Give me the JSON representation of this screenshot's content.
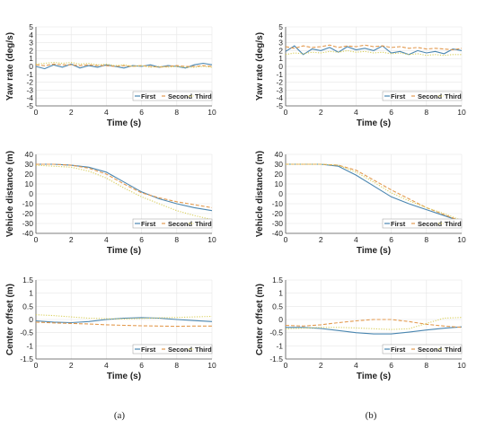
{
  "captions": [
    "(a)",
    "(b)"
  ],
  "colors": {
    "first": "#4a86b0",
    "second": "#e39a4f",
    "third": "#d9cf5c"
  },
  "chart_data": [
    {
      "type": "line",
      "panel": "a",
      "row": 0,
      "xlabel": "Time (s)",
      "ylabel": "Yaw rate (deg/s)",
      "xlim": [
        0,
        10
      ],
      "ylim": [
        -5,
        5
      ],
      "xticks": [
        0,
        2,
        4,
        6,
        8,
        10
      ],
      "yticks": [
        -5,
        -4,
        -3,
        -2,
        -1,
        0,
        1,
        2,
        3,
        4,
        5
      ],
      "grid": true,
      "legend": "bottom-right",
      "x": [
        0,
        0.5,
        1,
        1.5,
        2,
        2.5,
        3,
        3.5,
        4,
        4.5,
        5,
        5.5,
        6,
        6.5,
        7,
        7.5,
        8,
        8.5,
        9,
        9.5,
        10
      ],
      "series": [
        {
          "name": "First",
          "style": "solid",
          "color": "#4a86b0",
          "values": [
            0.0,
            -0.3,
            0.2,
            -0.1,
            0.3,
            -0.2,
            0.1,
            -0.1,
            0.2,
            0.0,
            -0.2,
            0.1,
            0.0,
            0.2,
            -0.1,
            0.1,
            0.0,
            -0.2,
            0.2,
            0.4,
            0.2
          ]
        },
        {
          "name": "Second",
          "style": "dashed",
          "color": "#e39a4f",
          "values": [
            0.2,
            0.1,
            0.3,
            0.2,
            0.2,
            0.1,
            0.2,
            0.1,
            0.1,
            0.0,
            0.1,
            0.0,
            0.1,
            0.0,
            -0.1,
            0.0,
            0.1,
            0.0,
            0.0,
            0.1,
            0.0
          ]
        },
        {
          "name": "Third",
          "style": "dotted",
          "color": "#d9cf5c",
          "values": [
            0.3,
            0.4,
            0.5,
            0.4,
            0.5,
            0.3,
            0.4,
            0.2,
            0.3,
            0.1,
            0.2,
            0.0,
            0.1,
            -0.1,
            0.0,
            -0.1,
            0.0,
            -0.1,
            -0.1,
            0.0,
            -0.1
          ]
        }
      ]
    },
    {
      "type": "line",
      "panel": "b",
      "row": 0,
      "xlabel": "Time (s)",
      "ylabel": "Yaw rate (deg/s)",
      "xlim": [
        0,
        10
      ],
      "ylim": [
        -5,
        5
      ],
      "xticks": [
        0,
        2,
        4,
        6,
        8,
        10
      ],
      "yticks": [
        -5,
        -4,
        -3,
        -2,
        -1,
        0,
        1,
        2,
        3,
        4,
        5
      ],
      "grid": true,
      "legend": "bottom-right",
      "x": [
        0,
        0.5,
        1,
        1.5,
        2,
        2.5,
        3,
        3.5,
        4,
        4.5,
        5,
        5.5,
        6,
        6.5,
        7,
        7.5,
        8,
        8.5,
        9,
        9.5,
        10
      ],
      "series": [
        {
          "name": "First",
          "style": "solid",
          "color": "#4a86b0",
          "values": [
            1.9,
            2.6,
            1.5,
            2.2,
            2.0,
            2.4,
            1.8,
            2.5,
            2.1,
            2.3,
            2.0,
            2.6,
            1.7,
            1.9,
            1.5,
            2.0,
            1.7,
            1.9,
            1.6,
            2.2,
            2.0
          ]
        },
        {
          "name": "Second",
          "style": "dashed",
          "color": "#e39a4f",
          "values": [
            2.5,
            2.3,
            2.6,
            2.4,
            2.5,
            2.7,
            2.4,
            2.6,
            2.5,
            2.7,
            2.5,
            2.6,
            2.4,
            2.5,
            2.3,
            2.4,
            2.2,
            2.3,
            2.2,
            2.1,
            2.3
          ]
        },
        {
          "name": "Third",
          "style": "dotted",
          "color": "#d9cf5c",
          "values": [
            1.5,
            1.7,
            1.6,
            1.8,
            1.7,
            1.9,
            1.8,
            2.0,
            1.8,
            1.9,
            1.7,
            1.8,
            1.6,
            1.7,
            1.5,
            1.6,
            1.4,
            1.5,
            1.4,
            1.5,
            1.5
          ]
        }
      ]
    },
    {
      "type": "line",
      "panel": "a",
      "row": 1,
      "xlabel": "Time (s)",
      "ylabel": "Vehicle distance (m)",
      "xlim": [
        0,
        10
      ],
      "ylim": [
        -40,
        40
      ],
      "xticks": [
        0,
        2,
        4,
        6,
        8,
        10
      ],
      "yticks": [
        -40,
        -30,
        -20,
        -10,
        0,
        10,
        20,
        30,
        40
      ],
      "grid": true,
      "legend": "bottom-right",
      "x": [
        0,
        1,
        2,
        3,
        4,
        5,
        6,
        7,
        8,
        9,
        10
      ],
      "series": [
        {
          "name": "First",
          "style": "solid",
          "color": "#4a86b0",
          "values": [
            30,
            30,
            29,
            27,
            22,
            12,
            2,
            -5,
            -10,
            -14,
            -17
          ]
        },
        {
          "name": "Second",
          "style": "dashed",
          "color": "#e39a4f",
          "values": [
            30,
            30,
            29,
            26,
            20,
            10,
            1,
            -4,
            -8,
            -11,
            -14
          ]
        },
        {
          "name": "Third",
          "style": "dotted",
          "color": "#d9cf5c",
          "values": [
            29,
            28,
            27,
            23,
            16,
            6,
            -3,
            -10,
            -17,
            -22,
            -26
          ]
        }
      ]
    },
    {
      "type": "line",
      "panel": "b",
      "row": 1,
      "xlabel": "Time (s)",
      "ylabel": "Vehicle distance (m)",
      "xlim": [
        0,
        10
      ],
      "ylim": [
        -40,
        40
      ],
      "xticks": [
        0,
        2,
        4,
        6,
        8,
        10
      ],
      "yticks": [
        -40,
        -30,
        -20,
        -10,
        0,
        10,
        20,
        30,
        40
      ],
      "grid": true,
      "legend": "bottom-right",
      "x": [
        0,
        1,
        2,
        3,
        4,
        5,
        6,
        7,
        8,
        9,
        10
      ],
      "series": [
        {
          "name": "First",
          "style": "solid",
          "color": "#4a86b0",
          "values": [
            30,
            30,
            30,
            28,
            19,
            8,
            -3,
            -10,
            -16,
            -22,
            -28
          ]
        },
        {
          "name": "Second",
          "style": "dashed",
          "color": "#e39a4f",
          "values": [
            30,
            30,
            30,
            29,
            24,
            14,
            4,
            -5,
            -14,
            -21,
            -28
          ]
        },
        {
          "name": "Third",
          "style": "dotted",
          "color": "#d9cf5c",
          "values": [
            30,
            30,
            30,
            29,
            22,
            12,
            1,
            -7,
            -14,
            -20,
            -27
          ]
        }
      ]
    },
    {
      "type": "line",
      "panel": "a",
      "row": 2,
      "xlabel": "Time (s)",
      "ylabel": "Center offset (m)",
      "xlim": [
        0,
        10
      ],
      "ylim": [
        -1.5,
        1.5
      ],
      "xticks": [
        0,
        2,
        4,
        6,
        8,
        10
      ],
      "yticks": [
        -1.5,
        -1,
        -0.5,
        0,
        0.5,
        1,
        1.5
      ],
      "grid": true,
      "legend": "bottom-right",
      "x": [
        0,
        1,
        2,
        3,
        4,
        5,
        6,
        7,
        8,
        9,
        10
      ],
      "series": [
        {
          "name": "First",
          "style": "solid",
          "color": "#4a86b0",
          "values": [
            -0.05,
            -0.1,
            -0.12,
            -0.08,
            0.0,
            0.05,
            0.07,
            0.05,
            0.0,
            -0.04,
            -0.08
          ]
        },
        {
          "name": "Second",
          "style": "dashed",
          "color": "#e39a4f",
          "values": [
            -0.1,
            -0.13,
            -0.15,
            -0.17,
            -0.2,
            -0.22,
            -0.24,
            -0.25,
            -0.26,
            -0.25,
            -0.25
          ]
        },
        {
          "name": "Third",
          "style": "dotted",
          "color": "#d9cf5c",
          "values": [
            0.18,
            0.15,
            0.1,
            0.05,
            0.03,
            0.02,
            0.04,
            0.06,
            0.08,
            0.1,
            0.12
          ]
        }
      ]
    },
    {
      "type": "line",
      "panel": "b",
      "row": 2,
      "xlabel": "Time (s)",
      "ylabel": "Center offset (m)",
      "xlim": [
        0,
        10
      ],
      "ylim": [
        -1.5,
        1.5
      ],
      "xticks": [
        0,
        2,
        4,
        6,
        8,
        10
      ],
      "yticks": [
        -1.5,
        -1,
        -0.5,
        0,
        0.5,
        1,
        1.5
      ],
      "grid": true,
      "legend": "bottom-right",
      "x": [
        0,
        1,
        2,
        3,
        4,
        5,
        6,
        7,
        8,
        9,
        10
      ],
      "series": [
        {
          "name": "First",
          "style": "solid",
          "color": "#4a86b0",
          "values": [
            -0.3,
            -0.3,
            -0.34,
            -0.42,
            -0.5,
            -0.55,
            -0.55,
            -0.48,
            -0.4,
            -0.33,
            -0.28
          ]
        },
        {
          "name": "Second",
          "style": "dashed",
          "color": "#e39a4f",
          "values": [
            -0.22,
            -0.25,
            -0.2,
            -0.12,
            -0.05,
            0.0,
            0.0,
            -0.08,
            -0.18,
            -0.25,
            -0.3
          ]
        },
        {
          "name": "Third",
          "style": "dotted",
          "color": "#d9cf5c",
          "values": [
            -0.35,
            -0.33,
            -0.3,
            -0.3,
            -0.32,
            -0.35,
            -0.38,
            -0.35,
            -0.15,
            0.05,
            0.08
          ]
        }
      ]
    }
  ]
}
